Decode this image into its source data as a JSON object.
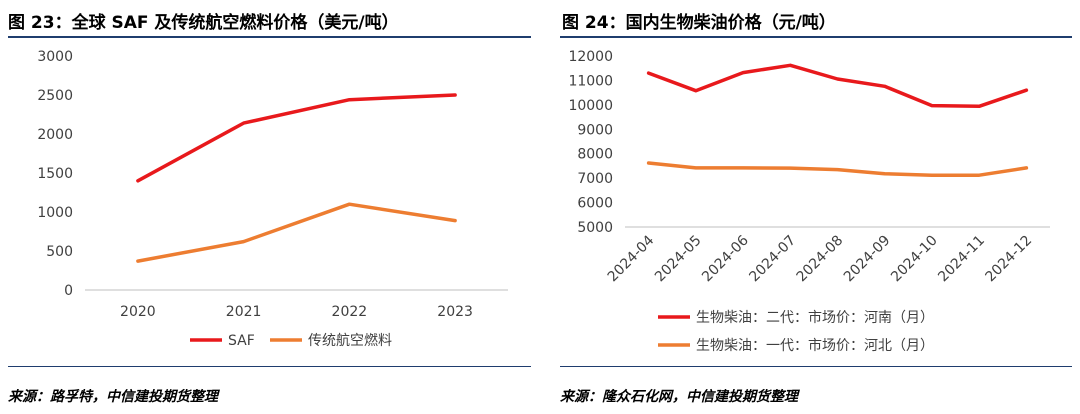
{
  "left": {
    "title": "图 23：全球 SAF 及传统航空燃料价格（美元/吨）",
    "source": "来源：路孚特，中信建投期货整理"
  },
  "right": {
    "title": "图 24：国内生物柴油价格（元/吨）",
    "source": "来源：隆众石化网，中信建投期货整理"
  },
  "chart_data": [
    {
      "type": "line",
      "title": "图 23：全球 SAF 及传统航空燃料价格（美元/吨）",
      "categories": [
        "2020",
        "2021",
        "2022",
        "2023"
      ],
      "ylim": [
        0,
        3000
      ],
      "yticks": [
        0,
        500,
        1000,
        1500,
        2000,
        2500,
        3000
      ],
      "grid": false,
      "legend_position": "bottom",
      "series": [
        {
          "name": "SAF",
          "color": "#e8191c",
          "values": [
            1400,
            2140,
            2440,
            2500
          ]
        },
        {
          "name": "传统航空燃料",
          "color": "#ed7d31",
          "values": [
            370,
            620,
            1100,
            890
          ]
        }
      ]
    },
    {
      "type": "line",
      "title": "图 24：国内生物柴油价格（元/吨）",
      "categories": [
        "2024-04",
        "2024-05",
        "2024-06",
        "2024-07",
        "2024-08",
        "2024-09",
        "2024-10",
        "2024-11",
        "2024-12"
      ],
      "ylim": [
        5000,
        12000
      ],
      "yticks": [
        5000,
        6000,
        7000,
        8000,
        9000,
        10000,
        11000,
        12000
      ],
      "grid": false,
      "legend_position": "bottom",
      "series": [
        {
          "name": "生物柴油：二代：市场价：河南（月）",
          "color": "#e8191c",
          "values": [
            11300,
            10580,
            11320,
            11620,
            11060,
            10760,
            9970,
            9940,
            10600
          ]
        },
        {
          "name": "生物柴油：一代：市场价：河北（月）",
          "color": "#ed7d31",
          "values": [
            7620,
            7420,
            7420,
            7410,
            7350,
            7180,
            7120,
            7120,
            7420
          ]
        }
      ]
    }
  ]
}
